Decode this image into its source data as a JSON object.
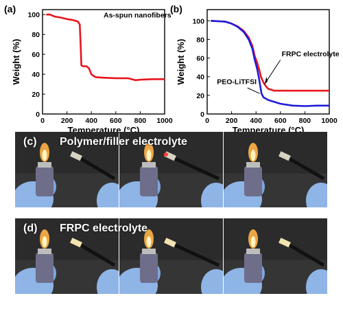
{
  "chart_data": [
    {
      "type": "line",
      "panel_label": "(a)",
      "xlabel": "Temperature (°C)",
      "ylabel": "Weight (%)",
      "xlim": [
        0,
        1000
      ],
      "ylim": [
        0,
        105
      ],
      "xticks": [
        0,
        200,
        400,
        600,
        800,
        1000
      ],
      "yticks": [
        0,
        20,
        40,
        60,
        80,
        100
      ],
      "series": [
        {
          "name": "As-spun nanofibers",
          "color": "#e8141c",
          "x": [
            30,
            60,
            100,
            150,
            200,
            250,
            290,
            305,
            312,
            318,
            330,
            360,
            380,
            400,
            420,
            440,
            500,
            600,
            700,
            760,
            800,
            900,
            1000
          ],
          "y": [
            100,
            100,
            98,
            97,
            95.5,
            94.5,
            93,
            90,
            70,
            49,
            48,
            48,
            46,
            40,
            38,
            37,
            36.5,
            36,
            36,
            34,
            34.5,
            35,
            35
          ]
        }
      ],
      "annotations": [
        {
          "text": "As-spun nanofibers",
          "x": 500,
          "y": 97
        }
      ]
    },
    {
      "type": "line",
      "panel_label": "(b)",
      "xlabel": "Temperature (°C)",
      "ylabel": "Weight (%)",
      "xlim": [
        0,
        1000
      ],
      "ylim": [
        0,
        112
      ],
      "xticks": [
        0,
        200,
        400,
        600,
        800,
        1000
      ],
      "yticks": [
        0,
        20,
        40,
        60,
        80,
        100
      ],
      "series": [
        {
          "name": "FRPC electrolyte",
          "color": "#e8141c",
          "x": [
            30,
            100,
            150,
            200,
            250,
            300,
            340,
            370,
            390,
            410,
            420,
            430,
            440,
            460,
            480,
            500,
            550,
            600,
            700,
            800,
            900,
            1000
          ],
          "y": [
            100,
            99.5,
            99,
            97,
            94,
            89,
            82,
            73,
            62,
            55,
            50,
            46,
            40,
            34,
            30,
            27,
            25,
            25,
            25,
            25,
            25,
            25
          ]
        },
        {
          "name": "PEO-LiTFSI",
          "color": "#1c1cd8",
          "x": [
            30,
            100,
            150,
            200,
            250,
            300,
            340,
            370,
            390,
            410,
            425,
            435,
            445,
            460,
            500,
            600,
            700,
            800,
            900,
            1000
          ],
          "y": [
            100,
            99.5,
            99,
            97,
            93.5,
            88,
            80,
            70,
            58,
            48,
            38,
            30,
            22,
            18,
            15,
            11,
            9,
            8.5,
            9,
            9
          ]
        }
      ],
      "annotations": [
        {
          "text": "FRPC electrolyte",
          "x": 610,
          "y": 62
        },
        {
          "text": "PEO-LiTFSI",
          "x": 80,
          "y": 32
        }
      ]
    }
  ],
  "photo_rows": [
    {
      "panel_label": "(c)",
      "title": "Polymer/filler electrolyte",
      "frames": 3
    },
    {
      "panel_label": "(d)",
      "title": "FRPC electrolyte",
      "frames": 3
    }
  ],
  "colors": {
    "red": "#e8141c",
    "blue": "#1c1cd8",
    "glove": "#8fb4e6",
    "flame": "#ffb347"
  }
}
